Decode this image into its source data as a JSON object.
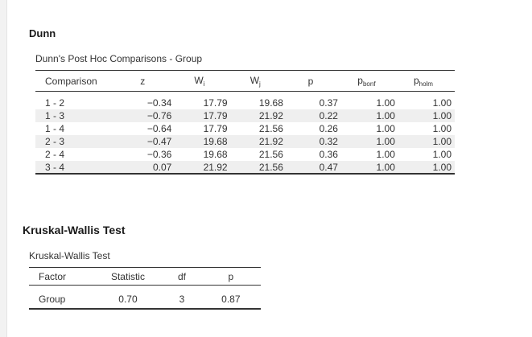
{
  "dunn": {
    "title": "Dunn",
    "table_title": "Dunn's Post Hoc Comparisons - Group",
    "headers": {
      "comparison": "Comparison",
      "z": "z",
      "wi_main": "W",
      "wi_sub": "i",
      "wj_main": "W",
      "wj_sub": "j",
      "p": "p",
      "pbonf_main": "p",
      "pbonf_sub": "bonf",
      "pholm_main": "p",
      "pholm_sub": "holm"
    },
    "rows": [
      {
        "comparison": "1 - 2",
        "z": "−0.34",
        "wi": "17.79",
        "wj": "19.68",
        "p": "0.37",
        "pbonf": "1.00",
        "pholm": "1.00"
      },
      {
        "comparison": "1 - 3",
        "z": "−0.76",
        "wi": "17.79",
        "wj": "21.92",
        "p": "0.22",
        "pbonf": "1.00",
        "pholm": "1.00"
      },
      {
        "comparison": "1 - 4",
        "z": "−0.64",
        "wi": "17.79",
        "wj": "21.56",
        "p": "0.26",
        "pbonf": "1.00",
        "pholm": "1.00"
      },
      {
        "comparison": "2 - 3",
        "z": "−0.47",
        "wi": "19.68",
        "wj": "21.92",
        "p": "0.32",
        "pbonf": "1.00",
        "pholm": "1.00"
      },
      {
        "comparison": "2 - 4",
        "z": "−0.36",
        "wi": "19.68",
        "wj": "21.56",
        "p": "0.36",
        "pbonf": "1.00",
        "pholm": "1.00"
      },
      {
        "comparison": "3 - 4",
        "z": "0.07",
        "wi": "21.92",
        "wj": "21.56",
        "p": "0.47",
        "pbonf": "1.00",
        "pholm": "1.00"
      }
    ]
  },
  "kruskal": {
    "title": "Kruskal-Wallis Test",
    "table_title": "Kruskal-Wallis Test",
    "headers": {
      "factor": "Factor",
      "statistic": "Statistic",
      "df": "df",
      "p": "p"
    },
    "row": {
      "factor": "Group",
      "statistic": "0.70",
      "df": "3",
      "p": "0.87"
    }
  },
  "colors": {
    "row_shade": "#efefef",
    "rule": "#333333",
    "text": "#333333"
  }
}
